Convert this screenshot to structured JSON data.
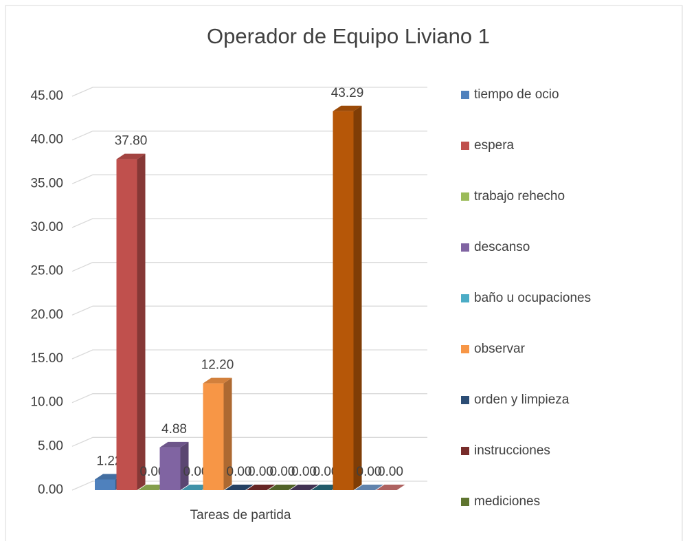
{
  "chart_data": {
    "type": "bar3d",
    "title": "Operador de Equipo Liviano 1",
    "x_label": "Tareas de partida",
    "ylim": [
      0,
      45
    ],
    "yticks": [
      {
        "value": 0,
        "label": "0.00"
      },
      {
        "value": 5,
        "label": "5.00"
      },
      {
        "value": 10,
        "label": "10.00"
      },
      {
        "value": 15,
        "label": "15.00"
      },
      {
        "value": 20,
        "label": "20.00"
      },
      {
        "value": 25,
        "label": "25.00"
      },
      {
        "value": 30,
        "label": "30.00"
      },
      {
        "value": 35,
        "label": "35.00"
      },
      {
        "value": 40,
        "label": "40.00"
      },
      {
        "value": 45,
        "label": "45.00"
      }
    ],
    "grid": true,
    "legend": "right",
    "series": [
      {
        "name": "tiempo de ocio",
        "color": "#4F81BD",
        "values": [
          1.22
        ],
        "value_labels": [
          "1.22"
        ]
      },
      {
        "name": "espera",
        "color": "#C0504D",
        "values": [
          37.8
        ],
        "value_labels": [
          "37.80"
        ]
      },
      {
        "name": "trabajo rehecho",
        "color": "#9BBB59",
        "values": [
          0
        ],
        "value_labels": [
          "0.00"
        ]
      },
      {
        "name": "descanso",
        "color": "#8064A2",
        "values": [
          4.88
        ],
        "value_labels": [
          "4.88"
        ]
      },
      {
        "name": "baño u ocupaciones",
        "color": "#4BACC6",
        "values": [
          0
        ],
        "value_labels": [
          "0.00"
        ]
      },
      {
        "name": "observar",
        "color": "#F79646",
        "values": [
          12.2
        ],
        "value_labels": [
          "12.20"
        ]
      },
      {
        "name": "orden y limpieza",
        "color": "#2C4D75",
        "values": [
          0
        ],
        "value_labels": [
          "0.00"
        ]
      },
      {
        "name": "instrucciones",
        "color": "#772C2A",
        "values": [
          0
        ],
        "value_labels": [
          "0.00"
        ]
      },
      {
        "name": "mediciones",
        "color": "#5F7530",
        "values": [
          0
        ],
        "value_labels": [
          "0.00"
        ]
      },
      {
        "color": "#4D3B62",
        "values": [
          0
        ],
        "value_labels": [
          "0.00"
        ]
      },
      {
        "color": "#276A7C",
        "values": [
          0
        ],
        "value_labels": [
          "0.00"
        ]
      },
      {
        "color": "#B65708",
        "values": [
          43.29
        ],
        "value_labels": [
          "43.29"
        ]
      },
      {
        "color": "#729ACA",
        "values": [
          0
        ],
        "value_labels": [
          "0.00"
        ]
      },
      {
        "color": "#CD7371",
        "values": [
          0
        ],
        "value_labels": [
          "0.00"
        ]
      }
    ]
  }
}
